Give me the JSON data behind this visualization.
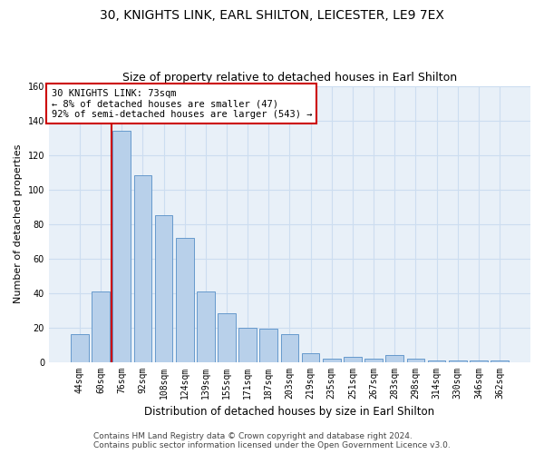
{
  "title_line1": "30, KNIGHTS LINK, EARL SHILTON, LEICESTER, LE9 7EX",
  "title_line2": "Size of property relative to detached houses in Earl Shilton",
  "xlabel": "Distribution of detached houses by size in Earl Shilton",
  "ylabel": "Number of detached properties",
  "categories": [
    "44sqm",
    "60sqm",
    "76sqm",
    "92sqm",
    "108sqm",
    "124sqm",
    "139sqm",
    "155sqm",
    "171sqm",
    "187sqm",
    "203sqm",
    "219sqm",
    "235sqm",
    "251sqm",
    "267sqm",
    "283sqm",
    "298sqm",
    "314sqm",
    "330sqm",
    "346sqm",
    "362sqm"
  ],
  "values": [
    16,
    41,
    134,
    108,
    85,
    72,
    41,
    28,
    20,
    19,
    16,
    5,
    2,
    3,
    2,
    4,
    2,
    1,
    1,
    1,
    1
  ],
  "bar_color": "#b8d0ea",
  "bar_edge_color": "#6699cc",
  "grid_color": "#ccddf0",
  "background_color": "#e8f0f8",
  "annotation_text": "30 KNIGHTS LINK: 73sqm\n← 8% of detached houses are smaller (47)\n92% of semi-detached houses are larger (543) →",
  "annotation_box_color": "#ffffff",
  "annotation_box_edge": "#cc0000",
  "property_line_color": "#cc0000",
  "ylim": [
    0,
    160
  ],
  "yticks": [
    0,
    20,
    40,
    60,
    80,
    100,
    120,
    140,
    160
  ],
  "footer_line1": "Contains HM Land Registry data © Crown copyright and database right 2024.",
  "footer_line2": "Contains public sector information licensed under the Open Government Licence v3.0.",
  "title_fontsize": 10,
  "subtitle_fontsize": 9,
  "xlabel_fontsize": 8.5,
  "ylabel_fontsize": 8,
  "tick_fontsize": 7,
  "footer_fontsize": 6.5,
  "annot_fontsize": 7.5
}
